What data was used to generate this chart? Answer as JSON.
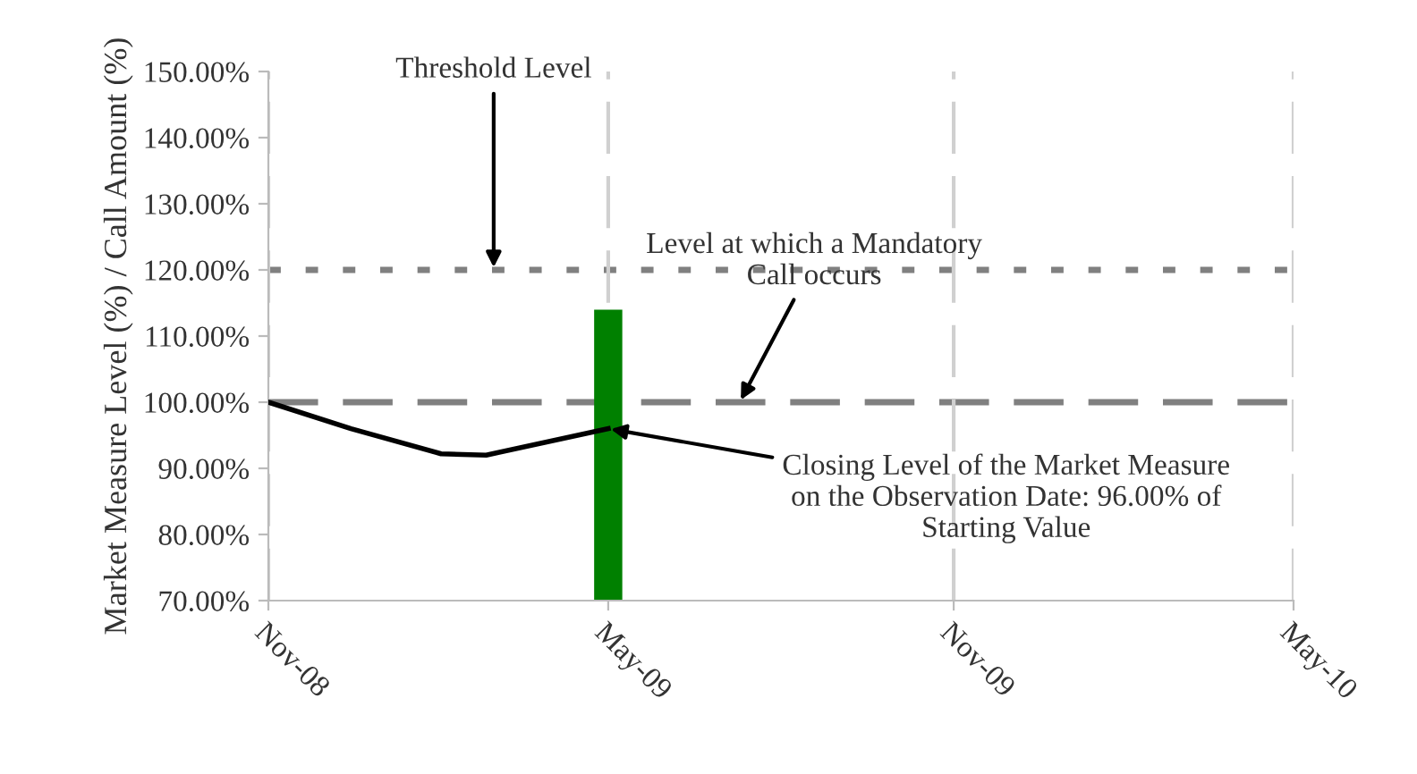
{
  "chart_data": {
    "type": "line",
    "ylabel": "Market Measure Level (%) / Call Amount (%)",
    "series": [
      {
        "type": "bar",
        "color": "#008000",
        "x": [
          "2009-05-01"
        ],
        "values": [
          114
        ]
      },
      {
        "color": "#000000",
        "x": [
          "2008-11-01",
          "2008-12-15",
          "2009-02-01",
          "2009-02-25",
          "2009-05-01"
        ],
        "values": [
          100,
          96,
          92.2,
          92,
          96
        ]
      }
    ],
    "xlim": [
      "2008-11-01",
      "2010-05-01"
    ],
    "xticks": [
      {
        "value": "2008-11-01",
        "label": "Nov-08"
      },
      {
        "value": "2009-05-01",
        "label": "May-09"
      },
      {
        "value": "2009-11-01",
        "label": "Nov-09"
      },
      {
        "value": "2010-05-01",
        "label": "May-10"
      }
    ],
    "ylim": [
      70,
      150
    ],
    "yticks": [
      {
        "value": 70,
        "label": "70.00%"
      },
      {
        "value": 80,
        "label": "80.00%"
      },
      {
        "value": 90,
        "label": "90.00%"
      },
      {
        "value": 100,
        "label": "100.00%"
      },
      {
        "value": 110,
        "label": "110.00%"
      },
      {
        "value": 120,
        "label": "120.00%"
      },
      {
        "value": 130,
        "label": "130.00%"
      },
      {
        "value": 140,
        "label": "140.00%"
      },
      {
        "value": 150,
        "label": "150.00%"
      }
    ],
    "ref_lines": [
      {
        "axis": "y",
        "value": 120,
        "color": "#808080",
        "line_style": "dotted"
      },
      {
        "axis": "y",
        "value": 100,
        "color": "#808080",
        "line_style": "dashed"
      }
    ],
    "annotations": [
      {
        "text": "Threshold Level",
        "x": "2009-03-01",
        "y": 120
      },
      {
        "text": "Level at which a Mandatory\nCall occurs",
        "x": "2009-07-10",
        "y": 100
      },
      {
        "text": "Closing Level of the Market Measure\non the Observation Date: 96.00% of\nStarting Value",
        "x": "2009-05-01",
        "y": 96
      }
    ],
    "grid": "x"
  }
}
